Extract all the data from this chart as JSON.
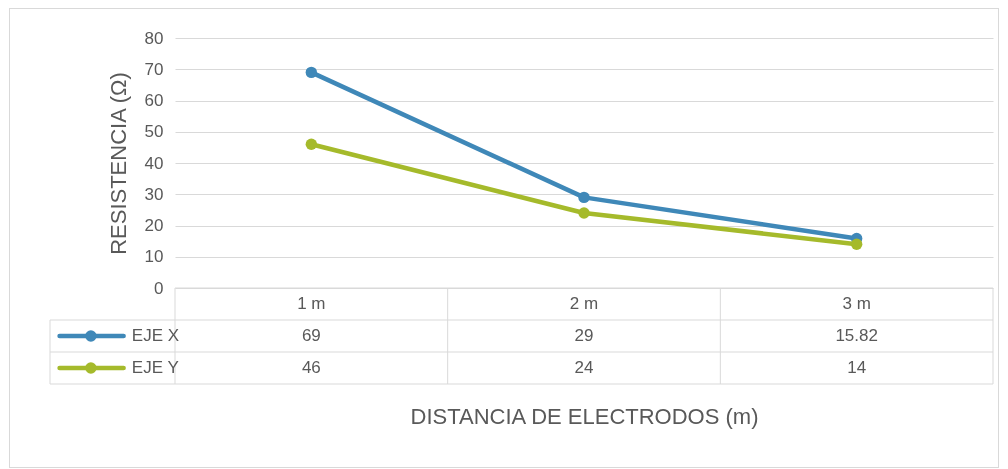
{
  "chart_data": {
    "type": "line",
    "xlabel": "DISTANCIA DE ELECTRODOS (m)",
    "ylabel": "RESISTENCIA (Ω)",
    "categories": [
      "1 m",
      "2 m",
      "3 m"
    ],
    "series": [
      {
        "name": "EJE X",
        "color": "#3f88b8",
        "values": [
          69,
          29,
          15.82
        ]
      },
      {
        "name": "EJE Y",
        "color": "#a5ba2b",
        "values": [
          46,
          24,
          14
        ]
      }
    ],
    "ylim": [
      0,
      80
    ],
    "yticks": [
      0,
      10,
      20,
      30,
      40,
      50,
      60,
      70,
      80
    ],
    "grid": "y",
    "legend": "bottom left",
    "marker": "circle",
    "data_labels": true
  }
}
